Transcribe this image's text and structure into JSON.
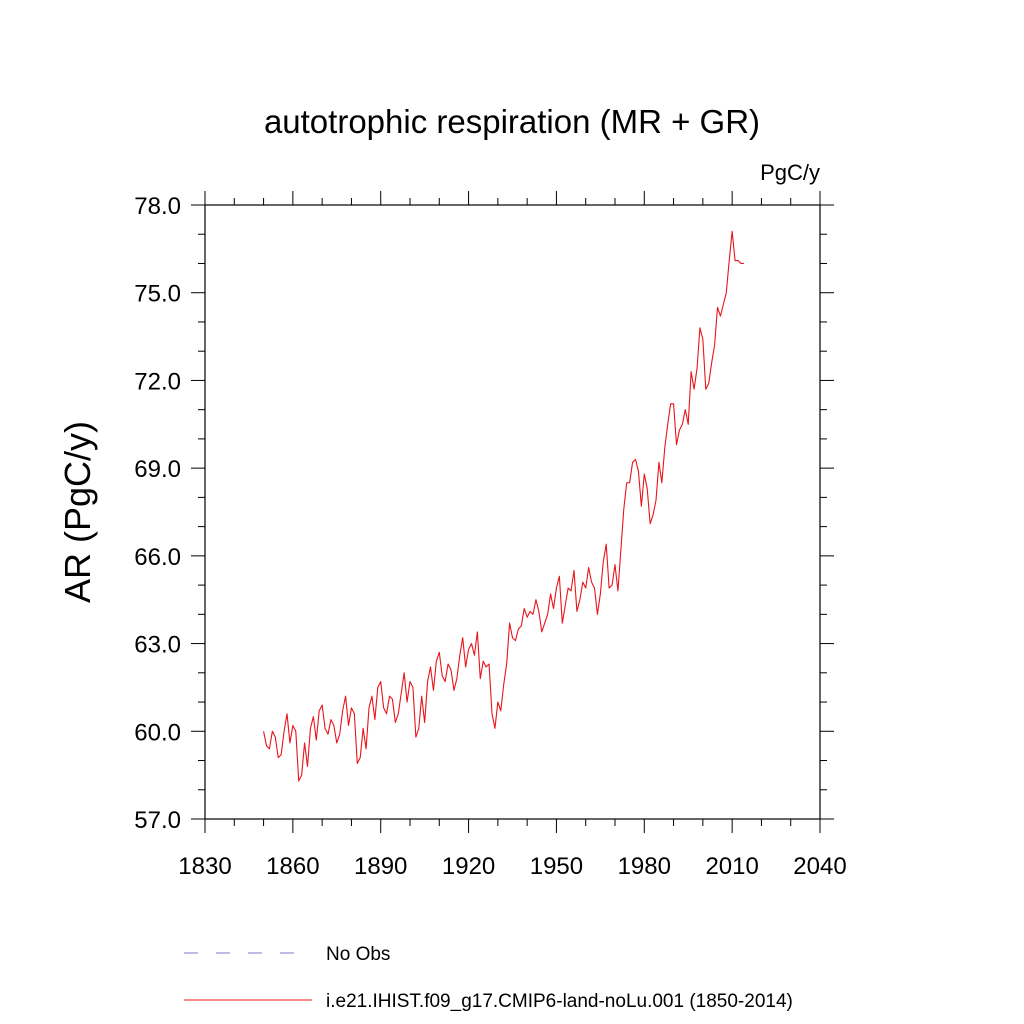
{
  "chart_data": {
    "type": "line",
    "title": "autotrophic respiration (MR + GR)",
    "units": "PgC/y",
    "ylabel": "AR  (PgC/y)",
    "xlabel": "",
    "xlim": [
      1830,
      2040
    ],
    "ylim": [
      57.0,
      78.0
    ],
    "x_ticks": [
      "1830",
      "1860",
      "1890",
      "1920",
      "1950",
      "1980",
      "2010",
      "2040"
    ],
    "y_ticks": [
      "57.0",
      "60.0",
      "63.0",
      "66.0",
      "69.0",
      "72.0",
      "75.0",
      "78.0"
    ],
    "grid": false,
    "legend_position": "bottom",
    "series": [
      {
        "name": "No Obs",
        "style": "dashed",
        "color": "#7a7acc",
        "x": [],
        "y": []
      },
      {
        "name": "i.e21.IHIST.f09_g17.CMIP6-land-noLu.001 (1850-2014)",
        "style": "solid",
        "color": "#e8141b",
        "x": [
          1850,
          1851,
          1852,
          1853,
          1854,
          1855,
          1856,
          1857,
          1858,
          1859,
          1860,
          1861,
          1862,
          1863,
          1864,
          1865,
          1866,
          1867,
          1868,
          1869,
          1870,
          1871,
          1872,
          1873,
          1874,
          1875,
          1876,
          1877,
          1878,
          1879,
          1880,
          1881,
          1882,
          1883,
          1884,
          1885,
          1886,
          1887,
          1888,
          1889,
          1890,
          1891,
          1892,
          1893,
          1894,
          1895,
          1896,
          1897,
          1898,
          1899,
          1900,
          1901,
          1902,
          1903,
          1904,
          1905,
          1906,
          1907,
          1908,
          1909,
          1910,
          1911,
          1912,
          1913,
          1914,
          1915,
          1916,
          1917,
          1918,
          1919,
          1920,
          1921,
          1922,
          1923,
          1924,
          1925,
          1926,
          1927,
          1928,
          1929,
          1930,
          1931,
          1932,
          1933,
          1934,
          1935,
          1936,
          1937,
          1938,
          1939,
          1940,
          1941,
          1942,
          1943,
          1944,
          1945,
          1946,
          1947,
          1948,
          1949,
          1950,
          1951,
          1952,
          1953,
          1954,
          1955,
          1956,
          1957,
          1958,
          1959,
          1960,
          1961,
          1962,
          1963,
          1964,
          1965,
          1966,
          1967,
          1968,
          1969,
          1970,
          1971,
          1972,
          1973,
          1974,
          1975,
          1976,
          1977,
          1978,
          1979,
          1980,
          1981,
          1982,
          1983,
          1984,
          1985,
          1986,
          1987,
          1988,
          1989,
          1990,
          1991,
          1992,
          1993,
          1994,
          1995,
          1996,
          1997,
          1998,
          1999,
          2000,
          2001,
          2002,
          2003,
          2004,
          2005,
          2006,
          2007,
          2008,
          2009,
          2010,
          2011,
          2012,
          2013,
          2014
        ],
        "y": [
          60.0,
          59.5,
          59.4,
          60.0,
          59.8,
          59.1,
          59.2,
          60.0,
          60.6,
          59.6,
          60.2,
          60.0,
          58.3,
          58.5,
          59.6,
          58.8,
          60.1,
          60.5,
          59.7,
          60.7,
          60.9,
          60.1,
          59.9,
          60.4,
          60.2,
          59.6,
          59.9,
          60.7,
          61.2,
          60.2,
          60.8,
          60.6,
          58.9,
          59.1,
          60.1,
          59.4,
          60.8,
          61.2,
          60.4,
          61.5,
          61.7,
          60.8,
          60.6,
          61.2,
          61.1,
          60.3,
          60.6,
          61.3,
          62.0,
          61.0,
          61.7,
          61.5,
          59.8,
          60.1,
          61.2,
          60.3,
          61.7,
          62.2,
          61.4,
          62.4,
          62.7,
          61.9,
          61.7,
          62.3,
          62.1,
          61.4,
          61.8,
          62.6,
          63.2,
          62.2,
          62.8,
          63.0,
          62.6,
          63.4,
          61.8,
          62.4,
          62.2,
          62.3,
          60.6,
          60.1,
          61.0,
          60.7,
          61.6,
          62.3,
          63.7,
          63.2,
          63.1,
          63.5,
          63.6,
          64.2,
          63.9,
          64.1,
          64.0,
          64.5,
          64.1,
          63.4,
          63.7,
          64.0,
          64.7,
          64.2,
          64.9,
          65.3,
          63.7,
          64.3,
          64.9,
          64.8,
          65.5,
          64.1,
          64.5,
          65.1,
          64.9,
          65.6,
          65.1,
          64.9,
          64.0,
          64.7,
          65.8,
          66.4,
          64.9,
          65.0,
          65.7,
          64.8,
          66.2,
          67.6,
          68.5,
          68.5,
          69.2,
          69.3,
          68.9,
          67.7,
          68.8,
          68.3,
          67.1,
          67.4,
          67.9,
          69.2,
          68.5,
          69.7,
          70.5,
          71.2,
          71.2,
          69.8,
          70.3,
          70.5,
          71.0,
          70.5,
          72.3,
          71.7,
          72.4,
          73.8,
          73.4,
          71.7,
          71.9,
          72.6,
          73.2,
          74.5,
          74.2,
          74.6,
          75.0,
          76.1,
          77.1,
          76.1,
          76.1,
          76.0,
          76.0
        ]
      }
    ]
  }
}
